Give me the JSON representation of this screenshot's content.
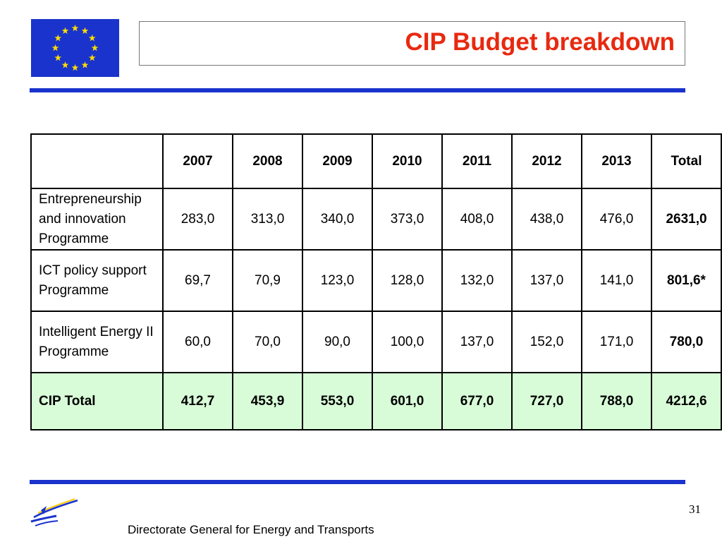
{
  "slide": {
    "title": "CIP Budget breakdown",
    "footer": "Directorate General for Energy and Transports",
    "page_number": "31"
  },
  "table": {
    "headers": [
      "",
      "2007",
      "2008",
      "2009",
      "2010",
      "2011",
      "2012",
      "2013",
      "Total"
    ],
    "rows": [
      {
        "label": "Entrepreneurship and innovation Programme",
        "values": [
          "283,0",
          "313,0",
          "340,0",
          "373,0",
          "408,0",
          "438,0",
          "476,0"
        ],
        "total": "2631,0"
      },
      {
        "label": "ICT policy support Programme",
        "values": [
          "69,7",
          "70,9",
          "123,0",
          "128,0",
          "132,0",
          "137,0",
          "141,0"
        ],
        "total": "801,6*"
      },
      {
        "label": "Intelligent Energy II Programme",
        "values": [
          "60,0",
          "70,0",
          "90,0",
          "100,0",
          "137,0",
          "152,0",
          "171,0"
        ],
        "total": "780,0"
      }
    ],
    "total_row": {
      "label": "CIP Total",
      "values": [
        "412,7",
        "453,9",
        "553,0",
        "601,0",
        "677,0",
        "727,0",
        "788,0"
      ],
      "total": "4212,6"
    }
  },
  "colors": {
    "title": "#e8290f",
    "rule": "#1a33cc",
    "total_row_bg": "#d8fcd8",
    "flag_blue": "#1a33cc",
    "flag_stars": "#ffdd00"
  },
  "icons": [
    "eu-flag-icon",
    "dg-tren-logo-icon"
  ]
}
